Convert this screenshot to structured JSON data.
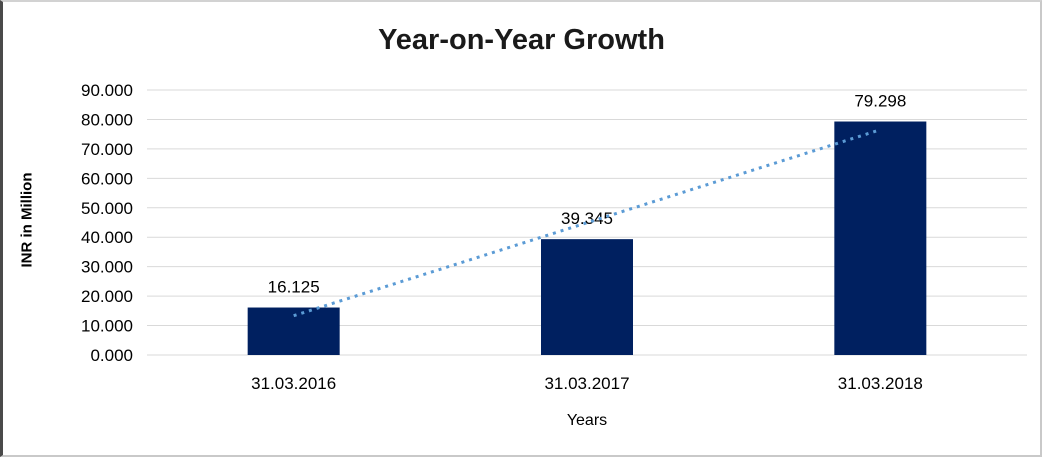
{
  "chart_data": {
    "type": "bar",
    "title": "Year-on-Year Growth",
    "categories": [
      "31.03.2016",
      "31.03.2017",
      "31.03.2018"
    ],
    "series": [
      {
        "name": "INR in Million",
        "values": [
          16.125,
          39.345,
          79.298
        ]
      }
    ],
    "data_labels": [
      "16.125",
      "39.345",
      "79.298"
    ],
    "xlabel": "Years",
    "ylabel": "INR in Million",
    "ylim": [
      0,
      90
    ],
    "ytick_step": 10,
    "ytick_labels": [
      "0.000",
      "10.000",
      "20.000",
      "30.000",
      "40.000",
      "50.000",
      "60.000",
      "70.000",
      "80.000",
      "90.000"
    ],
    "grid": true,
    "legend": "none",
    "colors": {
      "bar": "#002060",
      "trendline": "#5B9BD5",
      "gridline": "#d9d9d9",
      "text": "#000000"
    },
    "trendline": {
      "kind": "linear",
      "style": "dotted"
    }
  }
}
